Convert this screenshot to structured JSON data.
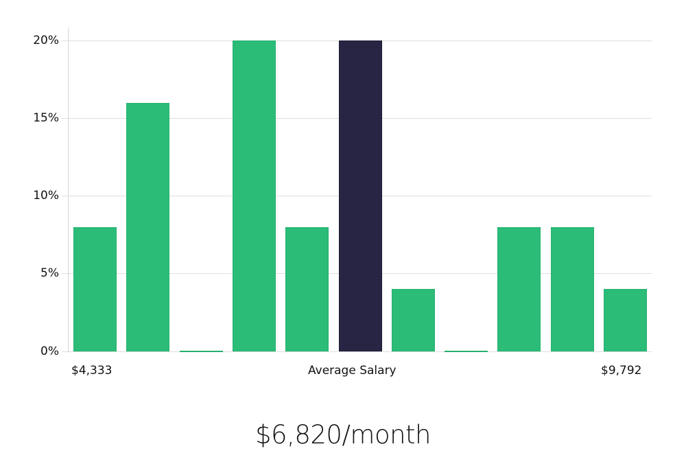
{
  "chart_data": {
    "type": "bar",
    "title": "",
    "xlabel": "Average Salary",
    "ylabel": "",
    "categories": [
      "bin1",
      "bin2",
      "bin3",
      "bin4",
      "bin5",
      "bin6",
      "bin7",
      "bin8",
      "bin9",
      "bin10",
      "bin11"
    ],
    "values": [
      8,
      16,
      0,
      20,
      8,
      20,
      4,
      0,
      8,
      8,
      4
    ],
    "highlighted_index": 5,
    "ylim": [
      0,
      20
    ],
    "yticks": [
      "0%",
      "5%",
      "10%",
      "15%",
      "20%"
    ],
    "x_min_label": "$4,333",
    "x_max_label": "$9,792",
    "grid": true,
    "legend": null
  },
  "colors": {
    "bar": "#2bbd78",
    "highlight": "#282544",
    "grid": "#dedede"
  },
  "labels": {
    "x_min": "$4,333",
    "x_center": "Average Salary",
    "x_max": "$9,792",
    "summary": "$6,820/month"
  },
  "yticks": [
    "0%",
    "5%",
    "10%",
    "15%",
    "20%"
  ]
}
